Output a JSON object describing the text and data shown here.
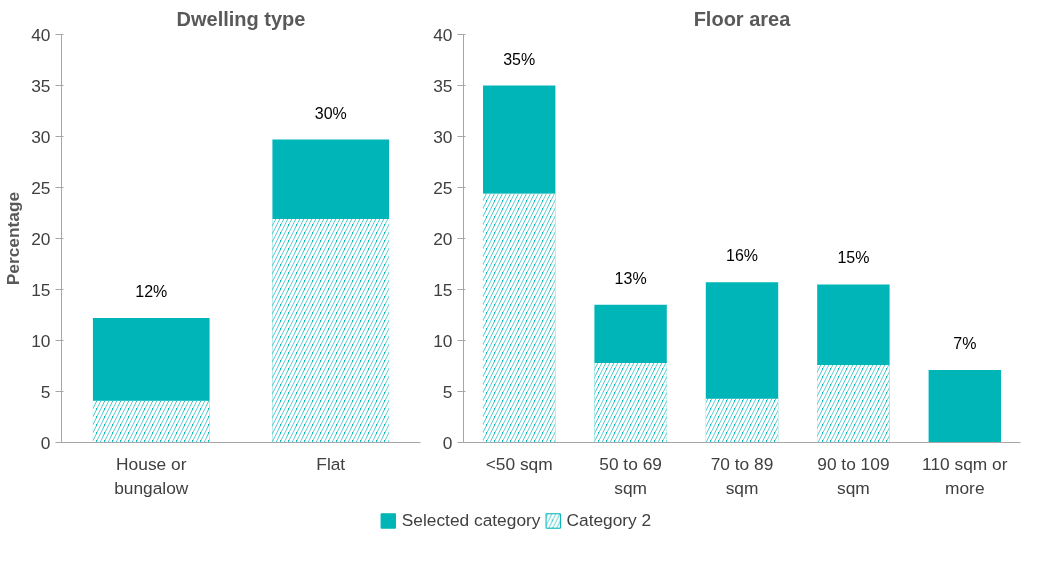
{
  "chart_data": [
    {
      "type": "bar",
      "stacked": true,
      "title": "Dwelling type",
      "ylabel": "Percentage",
      "categories": [
        "House or bungalow",
        "Flat"
      ],
      "ylim": [
        0,
        40
      ],
      "yticks": [
        0,
        5,
        10,
        15,
        20,
        25,
        30,
        35,
        40
      ],
      "grid": false,
      "legend": "bottom",
      "series": [
        {
          "name": "Category 2",
          "color": "#00b5b8",
          "values": [
            4.1,
            21.9
          ]
        },
        {
          "name": "Selected category",
          "color": "#00b5b8",
          "values": [
            8.1,
            7.8
          ]
        }
      ],
      "totals": [
        "12%",
        "30%"
      ]
    },
    {
      "type": "bar",
      "stacked": true,
      "title": "Floor area",
      "categories": [
        "<50 sqm",
        "50 to 69 sqm",
        "70 to 89 sqm",
        "90 to 109 sqm",
        "110 sqm or more"
      ],
      "ylim": [
        0,
        40
      ],
      "yticks": [
        0,
        5,
        10,
        15,
        20,
        25,
        30,
        35,
        40
      ],
      "grid": false,
      "series": [
        {
          "color": "#00b5b8",
          "values": [
            24.4,
            7.8,
            4.3,
            7.6,
            0
          ]
        },
        {
          "color": "#00b5b8",
          "values": [
            10.6,
            5.7,
            11.4,
            7.9,
            7.1
          ]
        }
      ],
      "totals": [
        "35%",
        "13%",
        "16%",
        "15%",
        "7%"
      ]
    }
  ]
}
